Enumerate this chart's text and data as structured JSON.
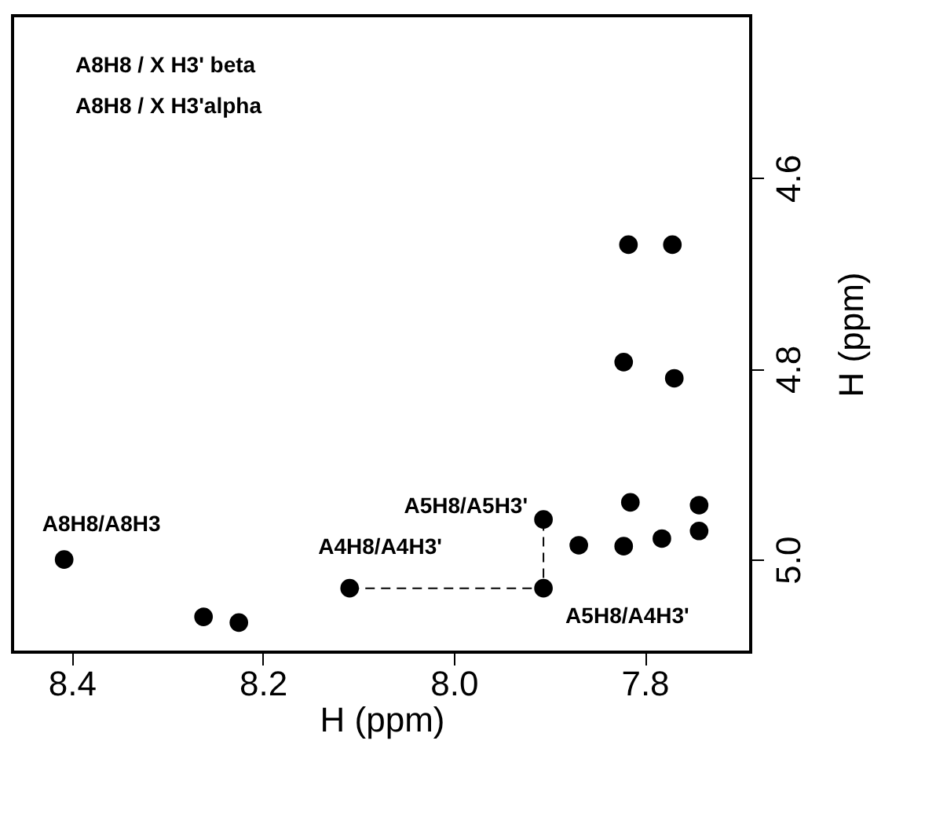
{
  "chart_data": {
    "type": "scatter",
    "xlabel": "H (ppm)",
    "ylabel": "H (ppm)",
    "xlim": [
      8.462,
      7.689
    ],
    "ylim": [
      5.097,
      4.43
    ],
    "xticks": [
      8.4,
      8.2,
      {
        "value": 8.0,
        "label": "8.0"
      },
      7.8
    ],
    "yticks": [
      4.6,
      4.8,
      {
        "value": 5.0,
        "label": "5.0"
      }
    ],
    "grid": false,
    "series": [
      {
        "marker": "circle",
        "color": "#000000",
        "x": [
          8.408,
          8.262,
          8.225,
          8.109,
          7.906,
          7.906,
          7.869,
          7.815,
          7.822,
          7.822,
          7.817,
          7.771,
          7.769,
          7.743,
          7.743,
          7.782
        ],
        "values": [
          5.0,
          5.06,
          5.066,
          5.03,
          5.03,
          4.958,
          4.985,
          4.94,
          4.986,
          4.793,
          4.67,
          4.67,
          4.81,
          4.943,
          4.97,
          4.978
        ]
      },
      {
        "type": "line",
        "line_style": "dashed",
        "marker": "none",
        "color": "#000000",
        "x": [
          8.109,
          7.906,
          7.906
        ],
        "values": [
          5.03,
          5.03,
          4.958
        ]
      }
    ],
    "annotations": [
      "A8H8 / X H3' beta",
      "A8H8 / X H3'alpha",
      {
        "text": "A8H8/A8H3",
        "x": 8.408,
        "y": 5.0
      },
      {
        "text": "A4H8/A4H3'",
        "x": 8.109,
        "y": 5.03
      },
      {
        "text": "A5H8/A5H3'",
        "x": 7.906,
        "y": 4.958
      },
      {
        "text": "A5H8/A4H3'",
        "x": 7.906,
        "y": 5.03
      }
    ]
  }
}
